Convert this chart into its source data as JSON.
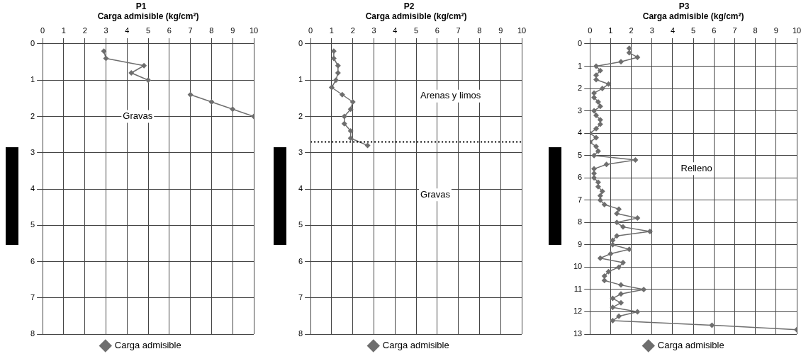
{
  "chart_data": [
    {
      "type": "line",
      "title": "P1",
      "xlabel": "Carga admisible (kg/cm²)",
      "orientation": "horizontal",
      "x": [
        0.2,
        0.4,
        0.6,
        0.8,
        1.0,
        1.2,
        1.4,
        1.6,
        1.8,
        2.0
      ],
      "series": [
        {
          "name": "Carga admisible",
          "color": "#6e6e6e",
          "values": [
            2.9,
            3,
            4.8,
            4.2,
            5,
            null,
            7,
            8,
            9,
            10
          ]
        }
      ],
      "xlim": [
        0,
        10
      ],
      "xticks": [
        0,
        1,
        2,
        3,
        4,
        5,
        6,
        7,
        8,
        9,
        10
      ],
      "ylim": [
        8,
        0
      ],
      "yticks": [
        0,
        1,
        2,
        3,
        4,
        5,
        6,
        7,
        8
      ],
      "grid": true,
      "legend": "bottom",
      "marker": "diamond",
      "annotations": [
        "Gravas"
      ]
    },
    {
      "type": "line",
      "title": "P2",
      "xlabel": "Carga admisible (kg/cm²)",
      "orientation": "horizontal",
      "x": [
        0.2,
        0.4,
        0.6,
        0.8,
        1.0,
        1.2,
        1.4,
        1.6,
        1.8,
        2.0,
        2.2,
        2.4,
        2.6,
        2.8
      ],
      "series": [
        {
          "name": "Carga admisible",
          "color": "#6e6e6e",
          "values": [
            1.1,
            1.1,
            1.3,
            1.3,
            1.2,
            1.0,
            1.5,
            2.0,
            1.9,
            1.6,
            1.6,
            1.9,
            1.9,
            2.7
          ]
        }
      ],
      "xlim": [
        0,
        10
      ],
      "xticks": [
        0,
        1,
        2,
        3,
        4,
        5,
        6,
        7,
        8,
        9,
        10
      ],
      "ylim": [
        8,
        0
      ],
      "yticks": [
        0,
        1,
        2,
        3,
        4,
        5,
        6,
        7,
        8
      ],
      "grid": true,
      "legend": "bottom",
      "marker": "diamond",
      "ref_lines": [
        {
          "axis": "y",
          "value": 2.7,
          "color": "#000000",
          "line_style": "dotted"
        }
      ],
      "annotations": [
        "Arenas y limos",
        "Gravas"
      ]
    },
    {
      "type": "line",
      "title": "P3",
      "xlabel": "Carga admisible (kg/cm²)",
      "orientation": "horizontal",
      "x": [
        0.2,
        0.4,
        0.6,
        0.8,
        1.0,
        1.2,
        1.4,
        1.6,
        1.8,
        2.0,
        2.2,
        2.4,
        2.6,
        2.8,
        3.0,
        3.2,
        3.4,
        3.6,
        3.8,
        4.0,
        4.2,
        4.4,
        4.6,
        4.8,
        5.0,
        5.2,
        5.4,
        5.6,
        5.8,
        6.0,
        6.2,
        6.4,
        6.6,
        6.8,
        7.0,
        7.2,
        7.4,
        7.6,
        7.8,
        8.0,
        8.2,
        8.4,
        8.6,
        8.8,
        9.0,
        9.2,
        9.4,
        9.6,
        9.8,
        10.0,
        10.2,
        10.4,
        10.6,
        10.8,
        11.0,
        11.2,
        11.4,
        11.6,
        11.8,
        12.0,
        12.2,
        12.4,
        12.6,
        12.8
      ],
      "series": [
        {
          "name": "Carga admisible",
          "color": "#6e6e6e",
          "values": [
            1.9,
            1.9,
            2.3,
            1.5,
            0.3,
            0.5,
            0.3,
            0.3,
            0.9,
            0.6,
            0.2,
            0.2,
            0.4,
            0.5,
            0.2,
            0.3,
            0.5,
            0.5,
            0.3,
            0,
            0.3,
            0,
            0.3,
            0.4,
            0.2,
            2.2,
            0.8,
            0.2,
            0.2,
            0.2,
            0.4,
            0.4,
            0.6,
            0.5,
            0.5,
            0.7,
            1.4,
            1.3,
            2.3,
            1.3,
            1.6,
            2.9,
            1.3,
            1.1,
            1.1,
            1.9,
            1.0,
            0.5,
            1.6,
            1.4,
            0.9,
            0.7,
            0.7,
            1.5,
            2.6,
            1.5,
            1.1,
            1.5,
            1.1,
            2.3,
            1.4,
            1.1,
            5.9,
            10
          ]
        }
      ],
      "xlim": [
        0,
        10
      ],
      "xticks": [
        0,
        1,
        2,
        3,
        4,
        5,
        6,
        7,
        8,
        9,
        10
      ],
      "ylim": [
        13,
        0
      ],
      "yticks": [
        0,
        1,
        2,
        3,
        4,
        5,
        6,
        7,
        8,
        9,
        10,
        11,
        12,
        13
      ],
      "grid": true,
      "legend": "bottom",
      "marker": "diamond",
      "annotations": [
        "Relleno"
      ]
    }
  ]
}
